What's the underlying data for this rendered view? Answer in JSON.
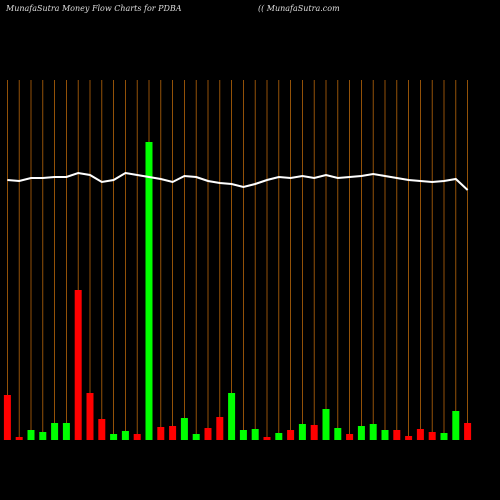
{
  "chart_data": {
    "type": "bar",
    "title": "MunafaSutra  Money Flow  Charts for PDBA",
    "subtitle": "(( MunafaSutra.com",
    "categories": [
      null,
      null,
      null,
      null,
      null,
      null,
      null,
      null,
      null,
      null,
      null,
      null,
      null,
      null,
      null,
      null,
      null,
      null,
      null,
      null,
      null,
      null,
      null,
      null,
      null,
      null,
      null,
      null,
      null,
      null,
      null,
      null,
      null,
      null,
      null,
      null,
      null,
      null,
      null,
      null
    ],
    "values": [
      45,
      3,
      10,
      8,
      17,
      17,
      150,
      47,
      21,
      6,
      9,
      6,
      298,
      13,
      14,
      22,
      6,
      12,
      23,
      47,
      10,
      11,
      3,
      7,
      10,
      16,
      15,
      31,
      12,
      6,
      14,
      16,
      10,
      10,
      4,
      11,
      8,
      7,
      29,
      17
    ],
    "colors": [
      "#ff0000",
      "#ff0000",
      "#00ff00",
      "#00ff00",
      "#00ff00",
      "#00ff00",
      "#ff0000",
      "#ff0000",
      "#ff0000",
      "#00ff00",
      "#00ff00",
      "#ff0000",
      "#00ff00",
      "#ff0000",
      "#ff0000",
      "#00ff00",
      "#00ff00",
      "#ff0000",
      "#ff0000",
      "#00ff00",
      "#00ff00",
      "#00ff00",
      "#ff0000",
      "#00ff00",
      "#ff0000",
      "#00ff00",
      "#ff0000",
      "#00ff00",
      "#00ff00",
      "#ff0000",
      "#00ff00",
      "#00ff00",
      "#00ff00",
      "#ff0000",
      "#ff0000",
      "#ff0000",
      "#ff0000",
      "#00ff00",
      "#00ff00",
      "#ff0000"
    ],
    "line": {
      "color": "#ffffff",
      "values": [
        260,
        259,
        262,
        262,
        263,
        263,
        267,
        265,
        258,
        260,
        267,
        265,
        263,
        261,
        258,
        264,
        263,
        259,
        257,
        256,
        253,
        256,
        260,
        263,
        262,
        264,
        262,
        265,
        262,
        263,
        264,
        266,
        264,
        262,
        260,
        259,
        258,
        259,
        261,
        250
      ]
    },
    "grid_color": "#b8660b",
    "ylim": [
      0,
      360
    ]
  }
}
